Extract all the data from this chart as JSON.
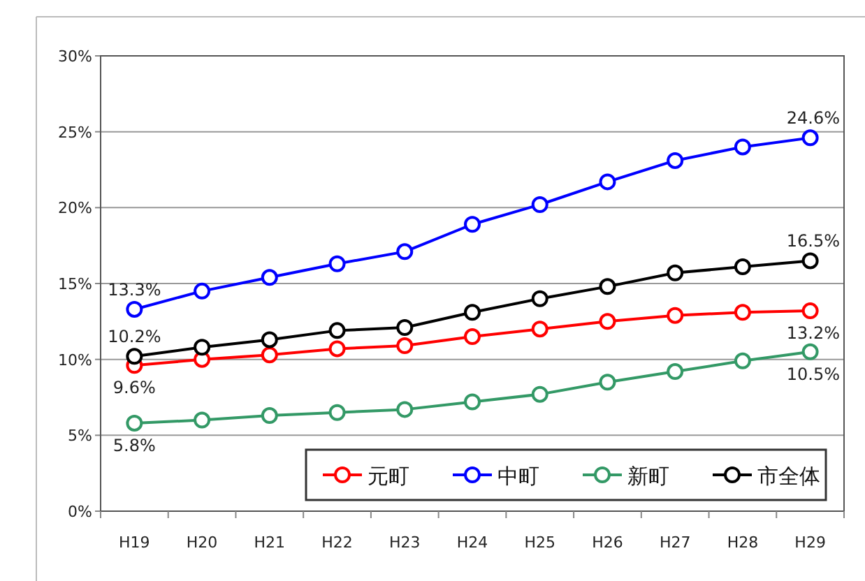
{
  "chart_data": {
    "type": "line",
    "categories": [
      "H19",
      "H20",
      "H21",
      "H22",
      "H23",
      "H24",
      "H25",
      "H26",
      "H27",
      "H28",
      "H29"
    ],
    "series": [
      {
        "name": "元町",
        "color": "#ff0000",
        "values": [
          9.6,
          10.0,
          10.3,
          10.7,
          10.9,
          11.5,
          12.0,
          12.5,
          12.9,
          13.1,
          13.2
        ]
      },
      {
        "name": "中町",
        "color": "#0000ff",
        "values": [
          13.3,
          14.5,
          15.4,
          16.3,
          17.1,
          18.9,
          20.2,
          21.7,
          23.1,
          24.0,
          24.6
        ]
      },
      {
        "name": "新町",
        "color": "#339966",
        "values": [
          5.8,
          6.0,
          6.3,
          6.5,
          6.7,
          7.2,
          7.7,
          8.5,
          9.2,
          9.9,
          10.5
        ]
      },
      {
        "name": "市全体",
        "color": "#000000",
        "values": [
          10.2,
          10.8,
          11.3,
          11.9,
          12.1,
          13.1,
          14.0,
          14.8,
          15.7,
          16.1,
          16.5
        ]
      }
    ],
    "ylim": [
      0,
      30
    ],
    "yticks": [
      {
        "value": 0,
        "label": "0%"
      },
      {
        "value": 5,
        "label": "5%"
      },
      {
        "value": 10,
        "label": "10%"
      },
      {
        "value": 15,
        "label": "15%"
      },
      {
        "value": 20,
        "label": "20%"
      },
      {
        "value": 25,
        "label": "25%"
      },
      {
        "value": 30,
        "label": "30%"
      }
    ],
    "grid": "y",
    "legend": "bottom right",
    "marker": "circle",
    "line_style": "solid",
    "annotations": [
      {
        "text": "13.3%",
        "x": "H19",
        "y": 13.3
      },
      {
        "text": "10.2%",
        "x": "H19",
        "y": 10.2
      },
      {
        "text": "9.6%",
        "x": "H19",
        "y": 9.6
      },
      {
        "text": "5.8%",
        "x": "H19",
        "y": 5.8
      },
      {
        "text": "24.6%",
        "x": "H29",
        "y": 24.6
      },
      {
        "text": "16.5%",
        "x": "H29",
        "y": 16.5
      },
      {
        "text": "13.2%",
        "x": "H29",
        "y": 13.2
      },
      {
        "text": "10.5%",
        "x": "H29",
        "y": 10.5
      }
    ]
  }
}
